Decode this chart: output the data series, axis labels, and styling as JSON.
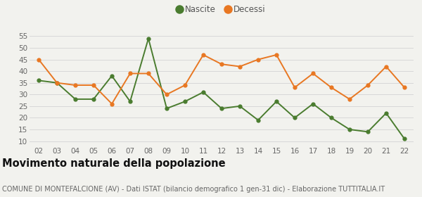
{
  "years": [
    "02",
    "03",
    "04",
    "05",
    "06",
    "07",
    "08",
    "09",
    "10",
    "11",
    "12",
    "13",
    "14",
    "15",
    "16",
    "17",
    "18",
    "19",
    "20",
    "21",
    "22"
  ],
  "nascite": [
    36,
    35,
    28,
    28,
    38,
    27,
    54,
    24,
    27,
    31,
    24,
    25,
    19,
    27,
    20,
    26,
    20,
    15,
    14,
    22,
    11
  ],
  "decessi": [
    45,
    35,
    34,
    34,
    26,
    39,
    39,
    30,
    34,
    47,
    43,
    42,
    45,
    47,
    33,
    39,
    33,
    28,
    34,
    42,
    33
  ],
  "nascite_color": "#4a7c2f",
  "decessi_color": "#e87722",
  "bg_color": "#f2f2ee",
  "grid_color": "#d8d8d8",
  "ylim_min": 8,
  "ylim_max": 57,
  "yticks": [
    10,
    15,
    20,
    25,
    30,
    35,
    40,
    45,
    50,
    55
  ],
  "title": "Movimento naturale della popolazione",
  "subtitle": "COMUNE DI MONTEFALCIONE (AV) - Dati ISTAT (bilancio demografico 1 gen-31 dic) - Elaborazione TUTTITALIA.IT",
  "legend_nascite": "Nascite",
  "legend_decessi": "Decessi",
  "title_fontsize": 10.5,
  "subtitle_fontsize": 7,
  "tick_fontsize": 7.5,
  "legend_fontsize": 8.5
}
